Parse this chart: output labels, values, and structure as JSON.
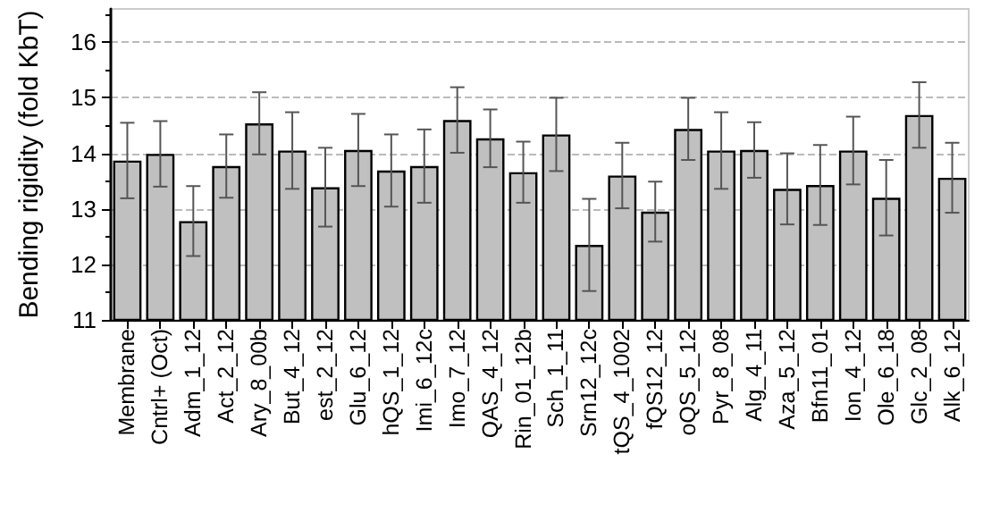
{
  "chart_data": {
    "type": "bar",
    "ylabel": "Bending rigidity (fold KbT)",
    "categories": [
      "Membrane",
      "Cntrl+ (Oct)",
      "Adm_1_12",
      "Act_2_12",
      "Ary_8_00b",
      "But_4_12",
      "est_2_12",
      "Glu_6_12",
      "hQS_1_12",
      "Imi_6_12c",
      "Imo_7_12",
      "QAS_4_12",
      "Rin_01_12b",
      "Sch_1_11",
      "Srn12_12c",
      "tQS_4_1002",
      "fQS12_12",
      "oQS_5_12",
      "Pyr_8_08",
      "Alg_4_11",
      "Aza_5_12",
      "Bfn11_01",
      "Ion_4_12",
      "Ole_6_18",
      "Glc_2_08",
      "Alk_6_12"
    ],
    "values": [
      13.87,
      13.99,
      12.78,
      13.77,
      14.54,
      14.05,
      13.39,
      14.06,
      13.69,
      13.77,
      14.6,
      14.27,
      13.66,
      14.34,
      12.35,
      13.6,
      12.95,
      14.44,
      14.05,
      14.06,
      13.36,
      13.43,
      14.05,
      13.2,
      14.69,
      13.56
    ],
    "errors": [
      0.68,
      0.59,
      0.63,
      0.57,
      0.56,
      0.69,
      0.71,
      0.65,
      0.65,
      0.66,
      0.59,
      0.52,
      0.55,
      0.66,
      0.83,
      0.59,
      0.54,
      0.56,
      0.69,
      0.5,
      0.64,
      0.72,
      0.61,
      0.68,
      0.59,
      0.63
    ],
    "color": "#c0c0c0",
    "ylim": [
      11,
      16.6
    ],
    "yticks": [
      11,
      12,
      13,
      14,
      15,
      16
    ],
    "grid": "y"
  }
}
